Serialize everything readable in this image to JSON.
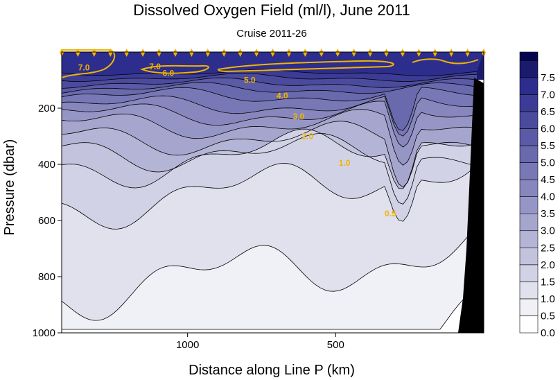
{
  "chart_data": {
    "type": "heatmap",
    "title": "Dissolved Oxygen Field  (ml/l),   June 2011",
    "subtitle": "Cruise 2011-26",
    "xlabel": "Distance along Line P  (km)",
    "ylabel": "Pressure  (dbar)",
    "x_axis": {
      "reversed": true,
      "range_km": [
        1425,
        0
      ],
      "ticks": [
        {
          "value": 1000,
          "label": "1000"
        },
        {
          "value": 500,
          "label": "500"
        }
      ]
    },
    "y_axis": {
      "reversed": true,
      "range": [
        0,
        1000
      ],
      "ticks": [
        {
          "value": 200,
          "label": "200"
        },
        {
          "value": 400,
          "label": "400"
        },
        {
          "value": 600,
          "label": "600"
        },
        {
          "value": 800,
          "label": "800"
        },
        {
          "value": 1000,
          "label": "1000"
        }
      ]
    },
    "colorbar": {
      "levels": [
        0.0,
        0.5,
        1.0,
        1.5,
        2.0,
        2.5,
        3.0,
        3.5,
        4.0,
        4.5,
        5.0,
        5.5,
        6.0,
        6.5,
        7.0,
        7.5
      ],
      "labels": [
        "0.0",
        "0.5",
        "1.0",
        "1.5",
        "2.0",
        "2.5",
        "3.0",
        "3.5",
        "4.0",
        "4.5",
        "5.0",
        "5.5",
        "6.0",
        "6.5",
        "7.0",
        "7.5"
      ],
      "colors": [
        "#ffffff",
        "#f0f0f7",
        "#e1e1ee",
        "#d2d2e6",
        "#c3c3de",
        "#b4b4d6",
        "#a5a5ce",
        "#9696c6",
        "#8787be",
        "#7878b6",
        "#6969ae",
        "#5a5aa6",
        "#4b4b9e",
        "#3c3c96",
        "#2d2d8e",
        "#1b1b6e"
      ],
      "top_color": "#05054f"
    },
    "contour_labels": [
      {
        "text": "7.0",
        "km": 1350,
        "dbar": 65
      },
      {
        "text": "7.0",
        "km": 1110,
        "dbar": 62
      },
      {
        "text": "6.0",
        "km": 1065,
        "dbar": 85
      },
      {
        "text": "5.0",
        "km": 790,
        "dbar": 110
      },
      {
        "text": "4.0",
        "km": 680,
        "dbar": 165
      },
      {
        "text": "3.0",
        "km": 625,
        "dbar": 240
      },
      {
        "text": "2.0",
        "km": 595,
        "dbar": 310
      },
      {
        "text": "1.0",
        "km": 470,
        "dbar": 405
      },
      {
        "text": "0.5",
        "km": 315,
        "dbar": 585
      }
    ],
    "station_count": 27,
    "colors": {
      "contour_label": "#f0b400",
      "station_marker": "#f0b400",
      "contour_line": "#000000",
      "bathymetry": "#000000"
    }
  }
}
